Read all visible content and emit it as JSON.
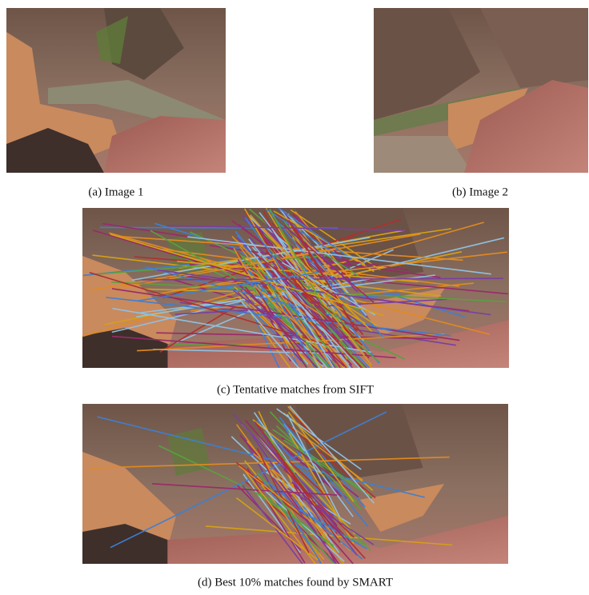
{
  "figure": {
    "panels": [
      {
        "caption": "(a) Image 1"
      },
      {
        "caption": "(b) Image 2"
      },
      {
        "caption": "(c) Tentative matches from SIFT"
      },
      {
        "caption": "(d) Best 10% matches found by SMART"
      }
    ]
  }
}
